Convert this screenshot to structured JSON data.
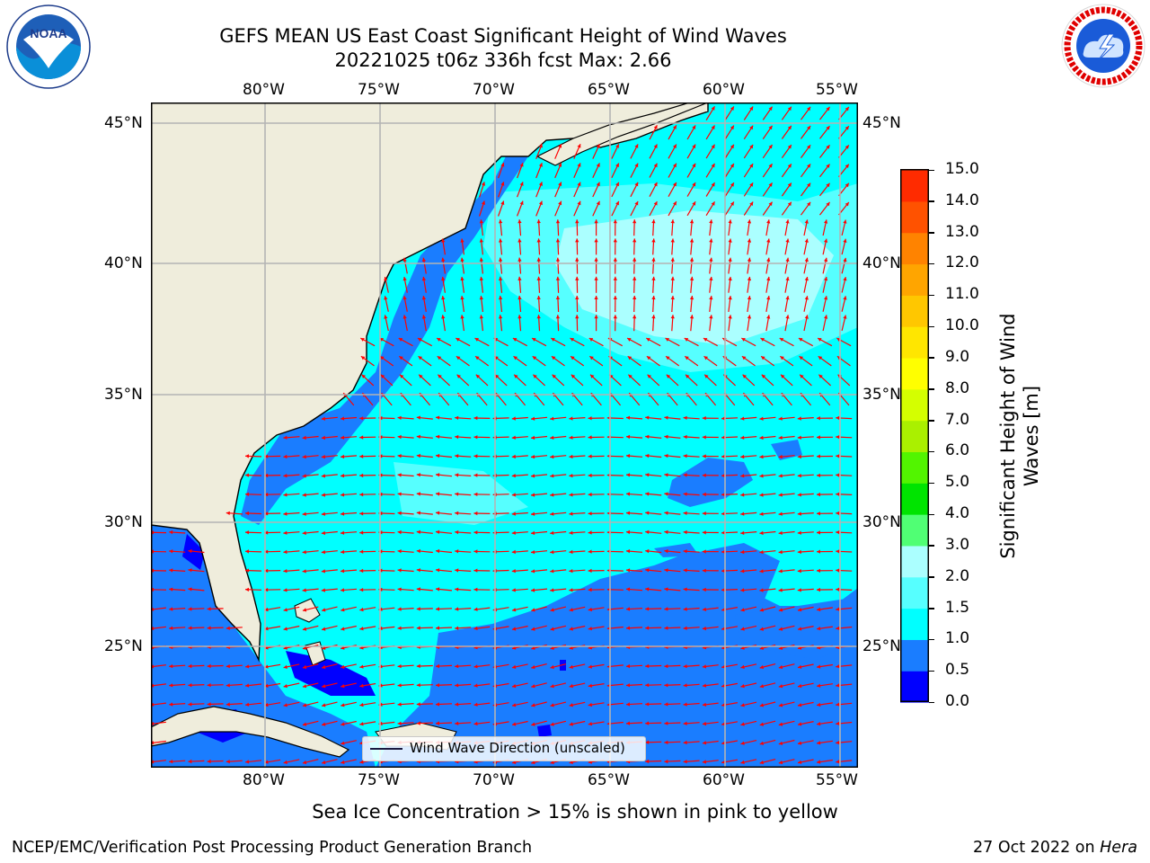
{
  "title": {
    "line1": "GEFS MEAN US East Coast Significant Height of Wind Waves",
    "line2": "20221025 t06z 336h fcst   Max: 2.66"
  },
  "map": {
    "lon_labels": [
      "80°W",
      "75°W",
      "70°W",
      "65°W",
      "60°W",
      "55°W"
    ],
    "lat_labels": [
      "45°N",
      "40°N",
      "35°N",
      "30°N",
      "25°N"
    ],
    "legend_label": "Wind Wave Direction (unscaled)",
    "colors": {
      "land": "#efeddc",
      "coast": "#000000",
      "grid": "#b4b4b4",
      "arrow": "#ff0000"
    }
  },
  "colorbar": {
    "label": "Significant Height of Wind Waves [m]",
    "ticks": [
      "0.0",
      "0.5",
      "1.0",
      "1.5",
      "2.0",
      "3.0",
      "4.0",
      "5.0",
      "6.0",
      "7.0",
      "8.0",
      "9.0",
      "10.0",
      "11.0",
      "12.0",
      "13.0",
      "14.0",
      "15.0"
    ],
    "colors": [
      "#0000ff",
      "#1a7dff",
      "#00ffff",
      "#56ffff",
      "#abffff",
      "#50ff74",
      "#00e400",
      "#52f500",
      "#aaf000",
      "#d4ff00",
      "#ffff00",
      "#ffe600",
      "#ffc700",
      "#ffa500",
      "#ff8300",
      "#ff5200",
      "#ff2b00"
    ]
  },
  "footer": {
    "sea_ice_note": "Sea Ice Concentration > 15% is shown in pink to yellow",
    "left": "NCEP/EMC/Verification Post Processing Product Generation Branch",
    "right_prefix": "27 Oct 2022 on ",
    "right_host": "Hera"
  },
  "logos": {
    "left": "NOAA",
    "right": "NATIONAL WEATHER SERVICE"
  }
}
